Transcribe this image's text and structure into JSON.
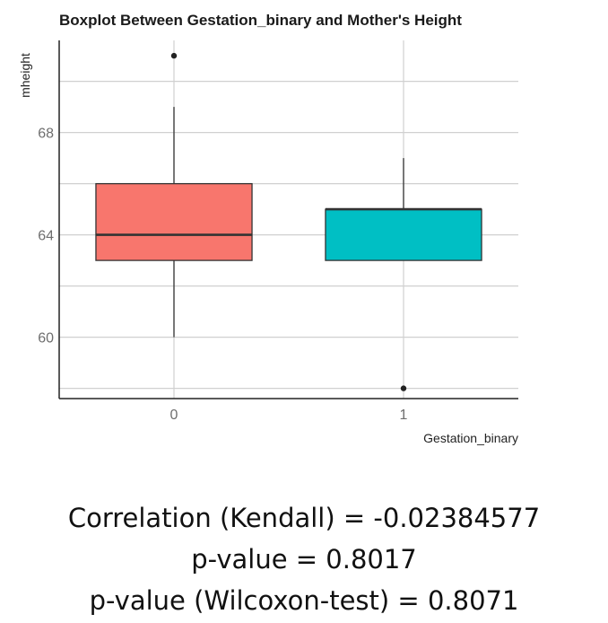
{
  "chart_data": {
    "type": "boxplot",
    "title": "Boxplot Between Gestation_binary and Mother's Height",
    "xlabel": "Gestation_binary",
    "ylabel": "mheight",
    "categories": [
      "0",
      "1"
    ],
    "yticks": [
      60,
      64,
      68
    ],
    "ylim": [
      57.6,
      71.6
    ],
    "grid": true,
    "boxes": [
      {
        "category": "0",
        "whisker_low": 60,
        "q1": 63,
        "median": 64,
        "q3": 66,
        "whisker_high": 69,
        "outliers": [
          71
        ],
        "color": "#F8766D"
      },
      {
        "category": "1",
        "whisker_low": 63,
        "q1": 63,
        "median": 65,
        "q3": 65,
        "whisker_high": 67,
        "outliers": [
          58
        ],
        "color": "#00BFC4"
      }
    ]
  },
  "stats": {
    "line1": "Correlation (Kendall) = -0.02384577",
    "line2": "p-value = 0.8017",
    "line3": "p-value (Wilcoxon-test) = 0.8071"
  }
}
